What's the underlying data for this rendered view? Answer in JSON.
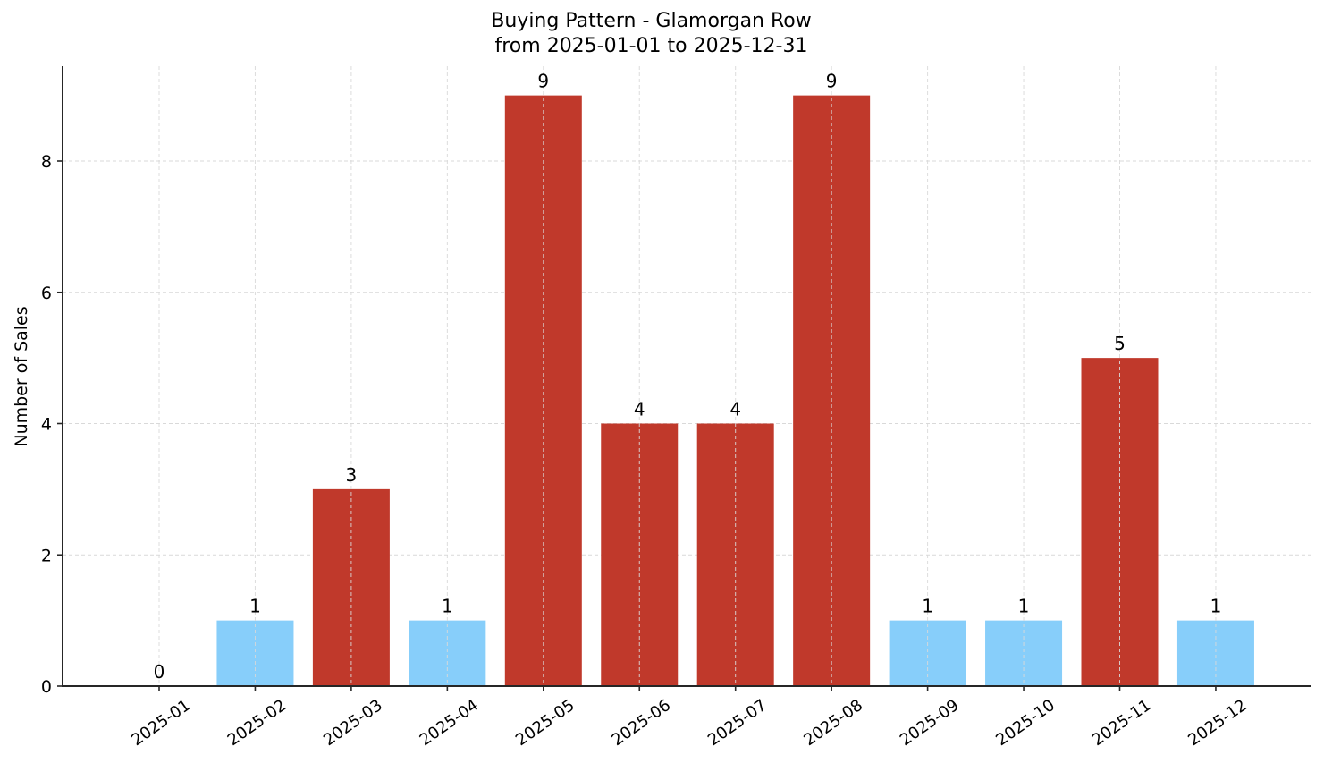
{
  "chart_data": {
    "type": "bar",
    "title": "Buying Pattern - Glamorgan Row",
    "subtitle": "from 2025-01-01 to 2025-12-31",
    "xlabel": "",
    "ylabel": "Number of Sales",
    "categories": [
      "2025-01",
      "2025-02",
      "2025-03",
      "2025-04",
      "2025-05",
      "2025-06",
      "2025-07",
      "2025-08",
      "2025-09",
      "2025-10",
      "2025-11",
      "2025-12"
    ],
    "values": [
      0,
      1,
      3,
      1,
      9,
      4,
      4,
      9,
      1,
      1,
      5,
      1
    ],
    "bar_colors": [
      "#87CEFA",
      "#87CEFA",
      "#C0392B",
      "#87CEFA",
      "#C0392B",
      "#C0392B",
      "#C0392B",
      "#C0392B",
      "#87CEFA",
      "#87CEFA",
      "#C0392B",
      "#87CEFA"
    ],
    "data_labels": [
      "0",
      "1",
      "3",
      "1",
      "9",
      "4",
      "4",
      "9",
      "1",
      "1",
      "5",
      "1"
    ],
    "yticks": [
      0,
      2,
      4,
      6,
      8
    ],
    "ylim": [
      0,
      9.45
    ],
    "grid": true,
    "legend": null
  },
  "colors": {
    "high": "#C0392B",
    "low": "#87CEFA",
    "grid": "#d9d9d9",
    "axis": "#262626"
  }
}
